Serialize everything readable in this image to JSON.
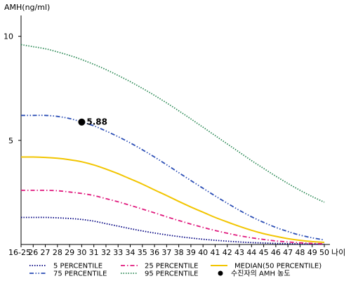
{
  "chart_data": {
    "type": "line",
    "ylabel": "AMH(ng/ml)",
    "xunit": "나이",
    "x": [
      "16-25",
      "26",
      "27",
      "28",
      "29",
      "30",
      "31",
      "32",
      "33",
      "34",
      "35",
      "36",
      "37",
      "38",
      "39",
      "40",
      "41",
      "42",
      "43",
      "44",
      "45",
      "46",
      "47",
      "48",
      "49",
      "50"
    ],
    "yticks": [
      5,
      10
    ],
    "ylim": [
      0,
      11
    ],
    "series": [
      {
        "name": "5 PERCENTILE",
        "color": "#000080",
        "style": "dotted",
        "values": [
          1.3,
          1.3,
          1.3,
          1.28,
          1.25,
          1.2,
          1.12,
          1.0,
          0.88,
          0.76,
          0.65,
          0.55,
          0.46,
          0.38,
          0.31,
          0.25,
          0.2,
          0.16,
          0.12,
          0.09,
          0.07,
          0.05,
          0.04,
          0.03,
          0.02,
          0.02
        ]
      },
      {
        "name": "25 PERCENTILE",
        "color": "#e0197d",
        "style": "dashdot",
        "values": [
          2.6,
          2.6,
          2.6,
          2.58,
          2.52,
          2.45,
          2.35,
          2.2,
          2.05,
          1.88,
          1.7,
          1.52,
          1.33,
          1.15,
          0.98,
          0.82,
          0.67,
          0.54,
          0.42,
          0.32,
          0.24,
          0.17,
          0.12,
          0.08,
          0.05,
          0.03
        ]
      },
      {
        "name": "MEDIAN(50 PERCENTILE)",
        "color": "#f2c500",
        "style": "solid",
        "values": [
          4.2,
          4.2,
          4.18,
          4.14,
          4.07,
          3.97,
          3.82,
          3.62,
          3.4,
          3.15,
          2.9,
          2.62,
          2.35,
          2.07,
          1.8,
          1.55,
          1.3,
          1.08,
          0.87,
          0.68,
          0.52,
          0.39,
          0.28,
          0.2,
          0.14,
          0.1
        ]
      },
      {
        "name": "75 PERCENTILE",
        "color": "#2a4db5",
        "style": "dashdotdot",
        "values": [
          6.2,
          6.2,
          6.2,
          6.15,
          6.05,
          5.88,
          5.7,
          5.45,
          5.18,
          4.88,
          4.55,
          4.2,
          3.83,
          3.45,
          3.07,
          2.7,
          2.33,
          1.98,
          1.64,
          1.33,
          1.06,
          0.82,
          0.62,
          0.45,
          0.32,
          0.22
        ]
      },
      {
        "name": "95 PERCENTILE",
        "color": "#2e8b57",
        "style": "dotted",
        "values": [
          9.6,
          9.5,
          9.4,
          9.25,
          9.08,
          8.88,
          8.65,
          8.4,
          8.12,
          7.82,
          7.5,
          7.16,
          6.8,
          6.42,
          6.03,
          5.63,
          5.23,
          4.83,
          4.43,
          4.03,
          3.65,
          3.28,
          2.93,
          2.6,
          2.3,
          2.03
        ]
      }
    ],
    "marker": {
      "name": "수진자의 AMH 농도",
      "x_index": 5,
      "value": 5.88,
      "label": "5.88",
      "color": "#000000"
    },
    "legend_placement": "bottom",
    "grid": false
  }
}
